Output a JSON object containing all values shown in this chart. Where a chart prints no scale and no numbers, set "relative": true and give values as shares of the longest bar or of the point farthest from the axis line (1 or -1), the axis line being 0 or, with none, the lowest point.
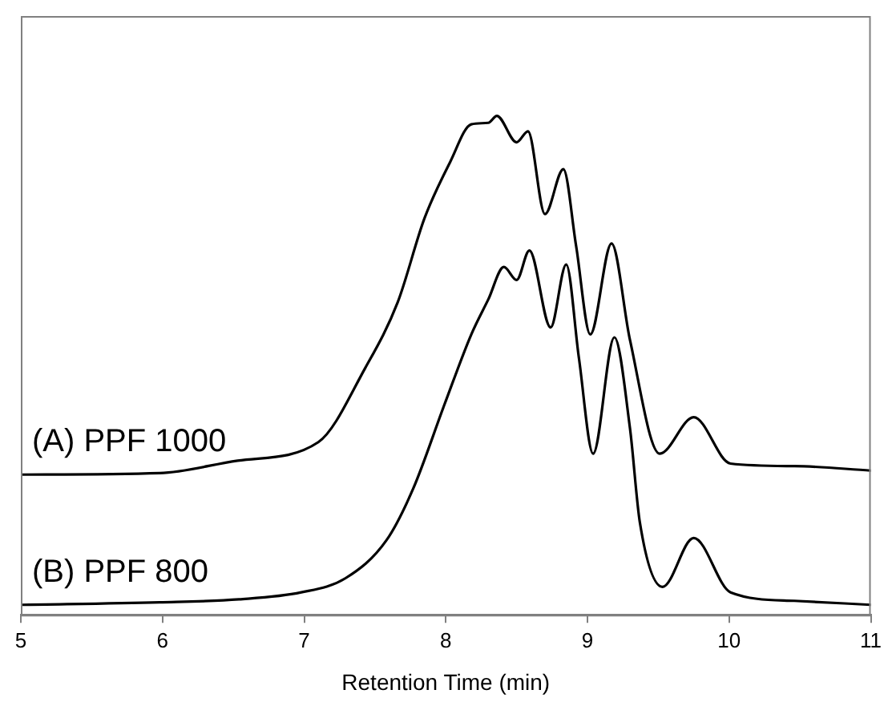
{
  "chart_data": {
    "type": "line",
    "xlabel": "Retention Time (min)",
    "relative": true,
    "xlim": [
      5,
      11
    ],
    "xticks": [
      5,
      6,
      7,
      8,
      9,
      10,
      11
    ],
    "grid": false,
    "legend": false,
    "marker": "none",
    "line_style": "solid",
    "series": [
      {
        "name": "(A) PPF 1000",
        "color": "#000000",
        "x": [
          5.0,
          5.98,
          6.53,
          7.1,
          7.43,
          7.66,
          7.85,
          8.03,
          8.18,
          8.3,
          8.36,
          8.5,
          8.58,
          8.7,
          8.83,
          8.92,
          9.02,
          9.17,
          9.3,
          9.51,
          9.75,
          10.01,
          10.46,
          11.0
        ],
        "values": [
          0.281,
          0.284,
          0.309,
          0.346,
          0.494,
          0.626,
          0.795,
          0.907,
          0.983,
          0.986,
          1.0,
          0.947,
          0.969,
          0.803,
          0.893,
          0.739,
          0.562,
          0.744,
          0.551,
          0.323,
          0.396,
          0.303,
          0.298,
          0.289
        ]
      },
      {
        "name": "(B) PPF 800",
        "color": "#000000",
        "x": [
          5.0,
          5.98,
          6.54,
          6.98,
          7.29,
          7.58,
          7.77,
          7.99,
          8.18,
          8.3,
          8.41,
          8.5,
          8.59,
          8.74,
          8.85,
          8.94,
          9.04,
          9.19,
          9.3,
          9.37,
          9.53,
          9.75,
          10.01,
          10.46,
          11.0
        ],
        "values": [
          0.02,
          0.025,
          0.031,
          0.045,
          0.073,
          0.149,
          0.253,
          0.421,
          0.562,
          0.632,
          0.697,
          0.671,
          0.73,
          0.576,
          0.702,
          0.514,
          0.323,
          0.556,
          0.374,
          0.185,
          0.056,
          0.154,
          0.045,
          0.028,
          0.02
        ]
      }
    ]
  }
}
